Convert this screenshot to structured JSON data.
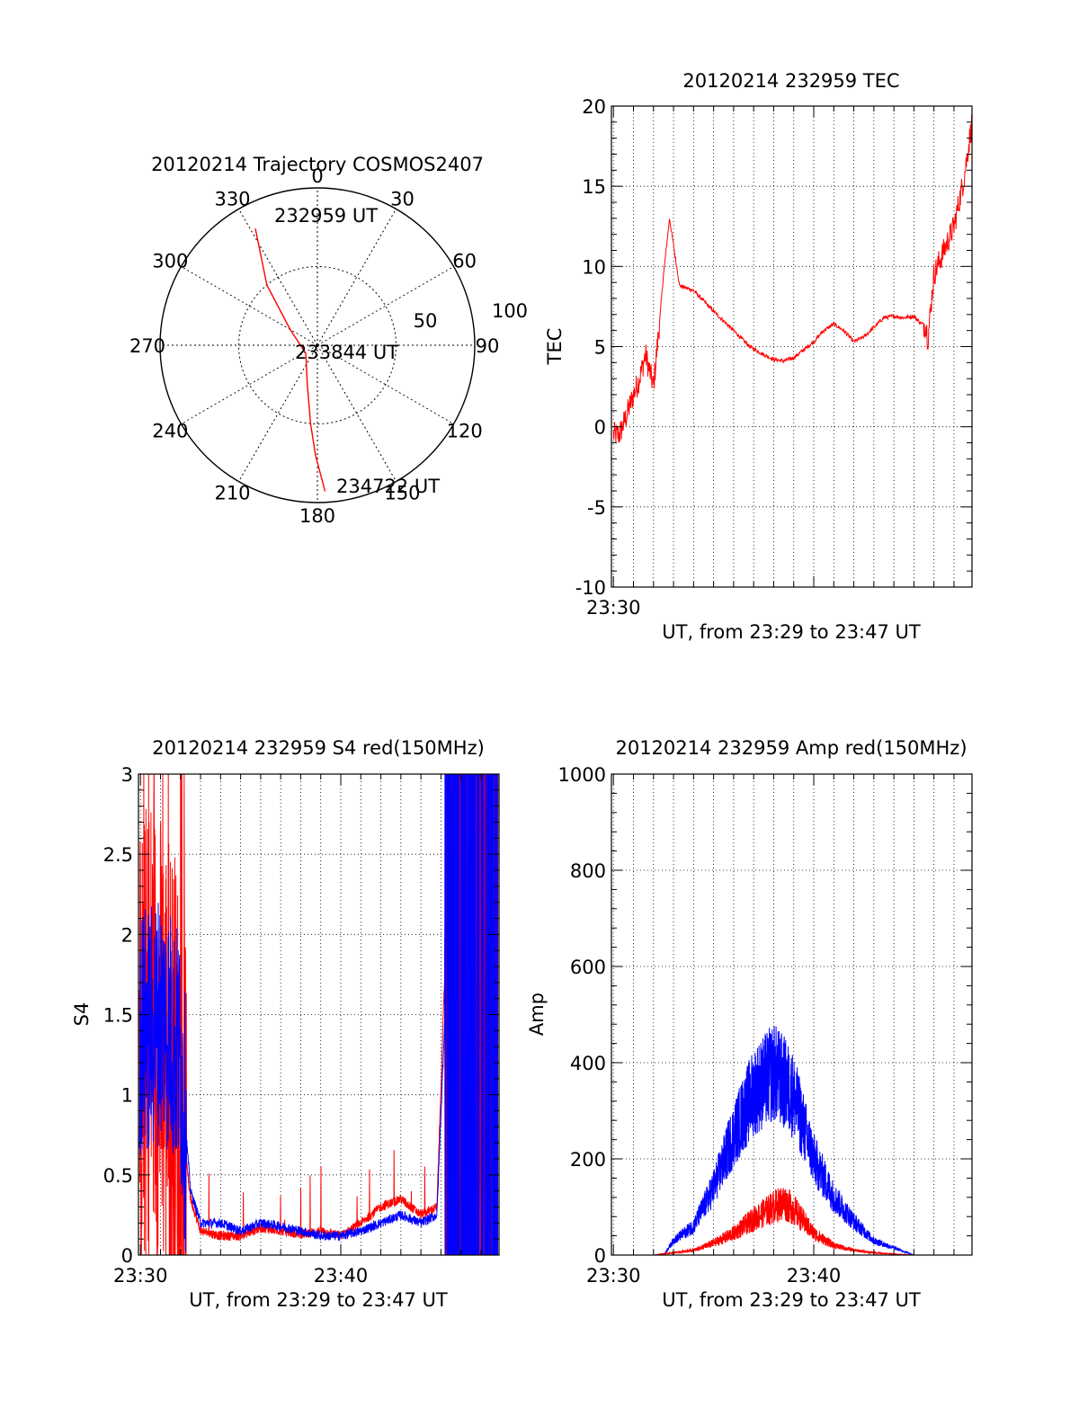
{
  "colors": {
    "red": "#ff0000",
    "blue": "#0000ff",
    "axis": "#000000",
    "grid": "#000000"
  },
  "charts": {
    "polar": {
      "title": "20120214 Trajectory COSMOS2407",
      "angle_labels": [
        "0",
        "30",
        "60",
        "90",
        "120",
        "150",
        "180",
        "210",
        "240",
        "270",
        "300",
        "330"
      ],
      "radius_labels": [
        "50",
        "100"
      ],
      "start_label": "232959 UT",
      "mid_label": "233844 UT",
      "end_label": "234722 UT"
    },
    "tec": {
      "title": "20120214 232959 TEC",
      "ylabel": "TEC",
      "xlabel": "UT, from 23:29 to 23:47 UT",
      "ytick_labels": [
        "20",
        "15",
        "10",
        "5",
        "0",
        "-5",
        "-10"
      ],
      "xtick_labels": [
        "23:30"
      ]
    },
    "s4": {
      "title": "20120214 232959 S4 red(150MHz)",
      "ylabel": "S4",
      "xlabel": "UT, from 23:29 to 23:47 UT",
      "ytick_labels": [
        "3",
        "2.5",
        "2",
        "1.5",
        "1",
        "0.5",
        "0"
      ],
      "xtick_labels": [
        "23:30",
        "23:40"
      ]
    },
    "amp": {
      "title": "20120214 232959 Amp red(150MHz)",
      "ylabel": "Amp",
      "xlabel": "UT, from 23:29 to 23:47 UT",
      "ytick_labels": [
        "1000",
        "800",
        "600",
        "400",
        "200",
        "0"
      ],
      "xtick_labels": [
        "23:30",
        "23:40"
      ]
    }
  },
  "chart_data": [
    {
      "type": "scatter",
      "subtype": "polar",
      "title": "20120214 Trajectory COSMOS2407",
      "angle_ticks": [
        0,
        30,
        60,
        90,
        120,
        150,
        180,
        210,
        240,
        270,
        300,
        330
      ],
      "radius_ticks": [
        50,
        100
      ],
      "rlim": [
        0,
        100
      ],
      "grid": true,
      "series": [
        {
          "color": "red",
          "points": [
            {
              "az": 332,
              "r": 84
            },
            {
              "az": 320,
              "r": 50
            },
            {
              "az": 300,
              "r": 20
            },
            {
              "az": 235,
              "r": 9
            },
            {
              "az": 195,
              "r": 25
            },
            {
              "az": 185,
              "r": 50
            },
            {
              "az": 181,
              "r": 70
            },
            {
              "az": 177,
              "r": 93
            }
          ]
        }
      ],
      "annotations": [
        {
          "text": "232959 UT",
          "az": 332,
          "r": 84
        },
        {
          "text": "233844 UT",
          "az": 235,
          "r": 9
        },
        {
          "text": "234722 UT",
          "az": 177,
          "r": 93
        }
      ]
    },
    {
      "type": "line",
      "title": "20120214 232959 TEC",
      "xlabel": "UT, from 23:29 to 23:47 UT",
      "ylabel": "TEC",
      "xlim_minutes": [
        29.9,
        47.9
      ],
      "ylim": [
        -10,
        20
      ],
      "grid": true,
      "series": [
        {
          "color": "red",
          "x": [
            30.0,
            30.3,
            30.6,
            31.0,
            31.3,
            31.6,
            32.0,
            32.3,
            32.5,
            32.8,
            33.3,
            34.0,
            35.0,
            36.0,
            36.8,
            37.5,
            38.0,
            38.5,
            39.0,
            39.5,
            40.0,
            40.5,
            41.0,
            41.5,
            42.0,
            42.5,
            43.0,
            43.5,
            44.0,
            44.5,
            45.0,
            45.3,
            45.6,
            45.7,
            46.0,
            46.5,
            47.0,
            47.5,
            47.9
          ],
          "y": [
            -0.5,
            -0.5,
            0.5,
            2.0,
            3.0,
            4.5,
            2.5,
            6.5,
            9.5,
            13.0,
            8.8,
            8.5,
            7.2,
            6.0,
            5.0,
            4.5,
            4.2,
            4.1,
            4.3,
            4.8,
            5.3,
            6.0,
            6.4,
            6.0,
            5.3,
            5.6,
            6.2,
            6.8,
            6.9,
            6.8,
            6.9,
            6.5,
            6.3,
            5.5,
            9.5,
            11.0,
            12.5,
            15.5,
            19.0
          ]
        }
      ]
    },
    {
      "type": "line",
      "title": "20120214 232959 S4 red(150MHz)",
      "xlabel": "UT, from 23:29 to 23:47 UT",
      "ylabel": "S4",
      "xlim_minutes": [
        29.9,
        47.9
      ],
      "ylim": [
        0,
        3
      ],
      "grid": true,
      "series": [
        {
          "color": "blue",
          "x": [
            30.0,
            30.5,
            31.0,
            31.5,
            32.0,
            32.5,
            33.0,
            34.0,
            35.0,
            36.0,
            37.0,
            38.0,
            39.0,
            40.0,
            41.0,
            42.0,
            43.0,
            44.0,
            44.8,
            45.2,
            46.0,
            46.5
          ],
          "y": [
            1.4,
            1.4,
            1.5,
            1.4,
            1.2,
            0.4,
            0.2,
            0.2,
            0.15,
            0.2,
            0.18,
            0.15,
            0.12,
            0.12,
            0.15,
            0.2,
            0.25,
            0.2,
            0.25,
            1.5,
            2.5,
            2.5
          ]
        },
        {
          "color": "red",
          "x": [
            30.0,
            30.5,
            31.0,
            31.5,
            32.0,
            32.5,
            33.0,
            34.0,
            35.0,
            36.0,
            37.0,
            38.0,
            39.0,
            40.0,
            41.0,
            42.0,
            43.0,
            44.0,
            44.8,
            45.2,
            46.0,
            46.5
          ],
          "y": [
            1.2,
            1.5,
            1.3,
            1.2,
            0.9,
            0.35,
            0.15,
            0.12,
            0.12,
            0.17,
            0.15,
            0.13,
            0.15,
            0.12,
            0.2,
            0.3,
            0.35,
            0.25,
            0.3,
            1.8,
            2.5,
            2.5
          ]
        }
      ]
    },
    {
      "type": "line",
      "title": "20120214 232959 Amp red(150MHz)",
      "xlabel": "UT, from 23:29 to 23:47 UT",
      "ylabel": "Amp",
      "xlim_minutes": [
        29.9,
        47.9
      ],
      "ylim": [
        0,
        1000
      ],
      "grid": true,
      "series": [
        {
          "color": "blue",
          "x": [
            30.0,
            31.0,
            32.0,
            32.5,
            33.0,
            34.0,
            35.0,
            36.0,
            37.0,
            38.0,
            38.5,
            39.0,
            40.0,
            41.0,
            42.0,
            43.0,
            44.0,
            45.0,
            46.0,
            47.9
          ],
          "y": [
            0,
            0,
            0,
            0,
            30,
            60,
            140,
            250,
            340,
            380,
            360,
            330,
            200,
            120,
            70,
            30,
            15,
            0,
            0,
            0
          ]
        },
        {
          "color": "red",
          "x": [
            30.0,
            31.0,
            32.0,
            33.0,
            34.0,
            35.0,
            36.0,
            37.0,
            38.0,
            38.5,
            39.0,
            40.0,
            41.0,
            42.0,
            43.0,
            44.0,
            45.0,
            47.9
          ],
          "y": [
            0,
            0,
            0,
            5,
            10,
            25,
            45,
            75,
            100,
            110,
            95,
            45,
            20,
            10,
            5,
            2,
            0,
            0
          ]
        }
      ]
    }
  ]
}
